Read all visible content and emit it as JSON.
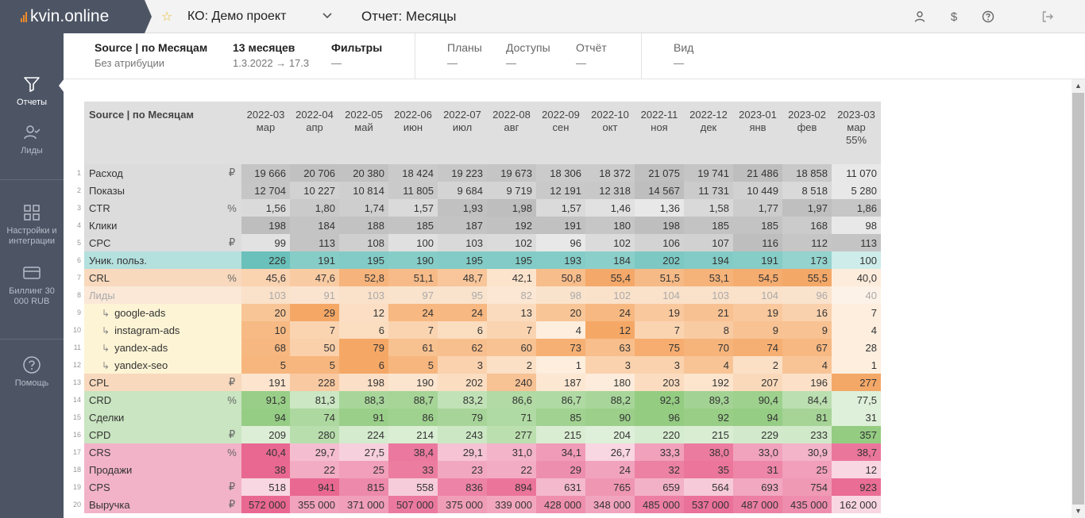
{
  "app": {
    "logo_prefix": "kvin",
    "logo_suffix": ".online",
    "project": "КО: Демо проект",
    "report_title": "Отчет: Месяцы"
  },
  "sidebar": {
    "items": [
      {
        "label": "Отчеты",
        "icon": "filter-icon"
      },
      {
        "label": "Лиды",
        "icon": "user-check-icon"
      },
      {
        "label": "Настройки и интеграции",
        "icon": "grid-icon"
      },
      {
        "label": "Биллинг 30 000 RUB",
        "icon": "card-icon"
      },
      {
        "label": "Помощь",
        "icon": "help-icon"
      }
    ]
  },
  "header": {
    "source_title": "Source | по Месяцам",
    "source_sub": "Без атрибуции",
    "period_title": "13 месяцев",
    "period_sub": "1.3.2022 → 17.3",
    "filters_title": "Фильтры",
    "filters_sub": "—",
    "plans_title": "Планы",
    "plans_sub": "—",
    "access_title": "Доступы",
    "access_sub": "—",
    "report_title": "Отчёт",
    "report_sub": "—",
    "view_title": "Вид",
    "view_sub": "—"
  },
  "table": {
    "corner": "Source | по Месяцам",
    "columns": [
      {
        "period": "2022-03",
        "month": "мар",
        "extra": ""
      },
      {
        "period": "2022-04",
        "month": "апр",
        "extra": ""
      },
      {
        "period": "2022-05",
        "month": "май",
        "extra": ""
      },
      {
        "period": "2022-06",
        "month": "июн",
        "extra": ""
      },
      {
        "period": "2022-07",
        "month": "июл",
        "extra": ""
      },
      {
        "period": "2022-08",
        "month": "авг",
        "extra": ""
      },
      {
        "period": "2022-09",
        "month": "сен",
        "extra": ""
      },
      {
        "period": "2022-10",
        "month": "окт",
        "extra": ""
      },
      {
        "period": "2022-11",
        "month": "ноя",
        "extra": ""
      },
      {
        "period": "2022-12",
        "month": "дек",
        "extra": ""
      },
      {
        "period": "2023-01",
        "month": "янв",
        "extra": ""
      },
      {
        "period": "2023-02",
        "month": "фев",
        "extra": ""
      },
      {
        "period": "2023-03",
        "month": "мар",
        "extra": "55%"
      }
    ],
    "rows": [
      {
        "n": "1",
        "name": "Расход",
        "unit": "₽",
        "group": "gray",
        "values": [
          "19 666",
          "20 706",
          "20 380",
          "18 424",
          "19 223",
          "19 673",
          "18 306",
          "18 372",
          "21 075",
          "19 741",
          "21 486",
          "18 858",
          "11 070"
        ]
      },
      {
        "n": "2",
        "name": "Показы",
        "unit": "",
        "group": "gray",
        "values": [
          "12 704",
          "10 227",
          "10 814",
          "11 805",
          "9 684",
          "9 719",
          "12 191",
          "12 318",
          "14 567",
          "11 731",
          "10 449",
          "8 518",
          "5 280"
        ]
      },
      {
        "n": "3",
        "name": "CTR",
        "unit": "%",
        "group": "gray",
        "values": [
          "1,56",
          "1,80",
          "1,74",
          "1,57",
          "1,93",
          "1,98",
          "1,57",
          "1,46",
          "1,36",
          "1,58",
          "1,77",
          "1,97",
          "1,86"
        ]
      },
      {
        "n": "4",
        "name": "Клики",
        "unit": "",
        "group": "gray",
        "values": [
          "198",
          "184",
          "188",
          "185",
          "187",
          "192",
          "191",
          "180",
          "198",
          "185",
          "185",
          "168",
          "98"
        ]
      },
      {
        "n": "5",
        "name": "CPC",
        "unit": "₽",
        "group": "gray",
        "values": [
          "99",
          "113",
          "108",
          "100",
          "103",
          "102",
          "96",
          "102",
          "106",
          "107",
          "116",
          "112",
          "113"
        ]
      },
      {
        "n": "6",
        "name": "Уник. польз.",
        "unit": "",
        "group": "teal",
        "values": [
          "226",
          "191",
          "195",
          "190",
          "195",
          "195",
          "193",
          "184",
          "202",
          "194",
          "191",
          "173",
          "100"
        ]
      },
      {
        "n": "7",
        "name": "CRL",
        "unit": "%",
        "group": "orange",
        "values": [
          "45,6",
          "47,6",
          "52,8",
          "51,1",
          "48,7",
          "42,1",
          "50,8",
          "55,4",
          "51,5",
          "53,1",
          "54,5",
          "55,5",
          "40,0"
        ]
      },
      {
        "n": "8",
        "name": "Лиды",
        "unit": "",
        "group": "leads",
        "values": [
          "103",
          "91",
          "103",
          "97",
          "95",
          "82",
          "98",
          "102",
          "104",
          "103",
          "104",
          "96",
          "40"
        ]
      },
      {
        "n": "9",
        "name": "google-ads",
        "unit": "",
        "group": "sub",
        "values": [
          "20",
          "29",
          "12",
          "24",
          "24",
          "13",
          "20",
          "24",
          "19",
          "21",
          "19",
          "16",
          "7"
        ]
      },
      {
        "n": "10",
        "name": "instagram-ads",
        "unit": "",
        "group": "sub",
        "values": [
          "10",
          "7",
          "6",
          "7",
          "6",
          "7",
          "4",
          "12",
          "7",
          "8",
          "9",
          "9",
          "4"
        ]
      },
      {
        "n": "11",
        "name": "yandex-ads",
        "unit": "",
        "group": "sub",
        "values": [
          "68",
          "50",
          "79",
          "61",
          "62",
          "60",
          "73",
          "63",
          "75",
          "70",
          "74",
          "67",
          "28"
        ]
      },
      {
        "n": "12",
        "name": "yandex-seo",
        "unit": "",
        "group": "sub",
        "values": [
          "5",
          "5",
          "6",
          "5",
          "3",
          "2",
          "1",
          "3",
          "3",
          "4",
          "2",
          "4",
          "1"
        ]
      },
      {
        "n": "13",
        "name": "CPL",
        "unit": "₽",
        "group": "orange",
        "values": [
          "191",
          "228",
          "198",
          "190",
          "202",
          "240",
          "187",
          "180",
          "203",
          "192",
          "207",
          "196",
          "277"
        ]
      },
      {
        "n": "14",
        "name": "CRD",
        "unit": "%",
        "group": "green",
        "values": [
          "91,3",
          "81,3",
          "88,3",
          "88,7",
          "83,2",
          "86,6",
          "86,7",
          "88,2",
          "92,3",
          "89,3",
          "90,4",
          "84,4",
          "77,5"
        ]
      },
      {
        "n": "15",
        "name": "Сделки",
        "unit": "",
        "group": "green",
        "values": [
          "94",
          "74",
          "91",
          "86",
          "79",
          "71",
          "85",
          "90",
          "96",
          "92",
          "94",
          "81",
          "31"
        ]
      },
      {
        "n": "16",
        "name": "CPD",
        "unit": "₽",
        "group": "green",
        "values": [
          "209",
          "280",
          "224",
          "214",
          "243",
          "277",
          "215",
          "204",
          "220",
          "215",
          "229",
          "233",
          "357"
        ]
      },
      {
        "n": "17",
        "name": "CRS",
        "unit": "%",
        "group": "pink",
        "values": [
          "40,4",
          "29,7",
          "27,5",
          "38,4",
          "29,1",
          "31,0",
          "34,1",
          "26,7",
          "33,3",
          "38,0",
          "33,0",
          "30,9",
          "38,7"
        ]
      },
      {
        "n": "18",
        "name": "Продажи",
        "unit": "",
        "group": "pink",
        "values": [
          "38",
          "22",
          "25",
          "33",
          "23",
          "22",
          "29",
          "24",
          "32",
          "35",
          "31",
          "25",
          "12"
        ]
      },
      {
        "n": "19",
        "name": "CPS",
        "unit": "₽",
        "group": "pink",
        "values": [
          "518",
          "941",
          "815",
          "558",
          "836",
          "894",
          "631",
          "765",
          "659",
          "564",
          "693",
          "754",
          "923"
        ]
      },
      {
        "n": "20",
        "name": "Выручка",
        "unit": "₽",
        "group": "pink",
        "values": [
          "572 000",
          "355 000",
          "371 000",
          "507 000",
          "375 000",
          "339 000",
          "428 000",
          "348 000",
          "485 000",
          "537 000",
          "487 000",
          "435 000",
          "162 000"
        ]
      }
    ]
  }
}
